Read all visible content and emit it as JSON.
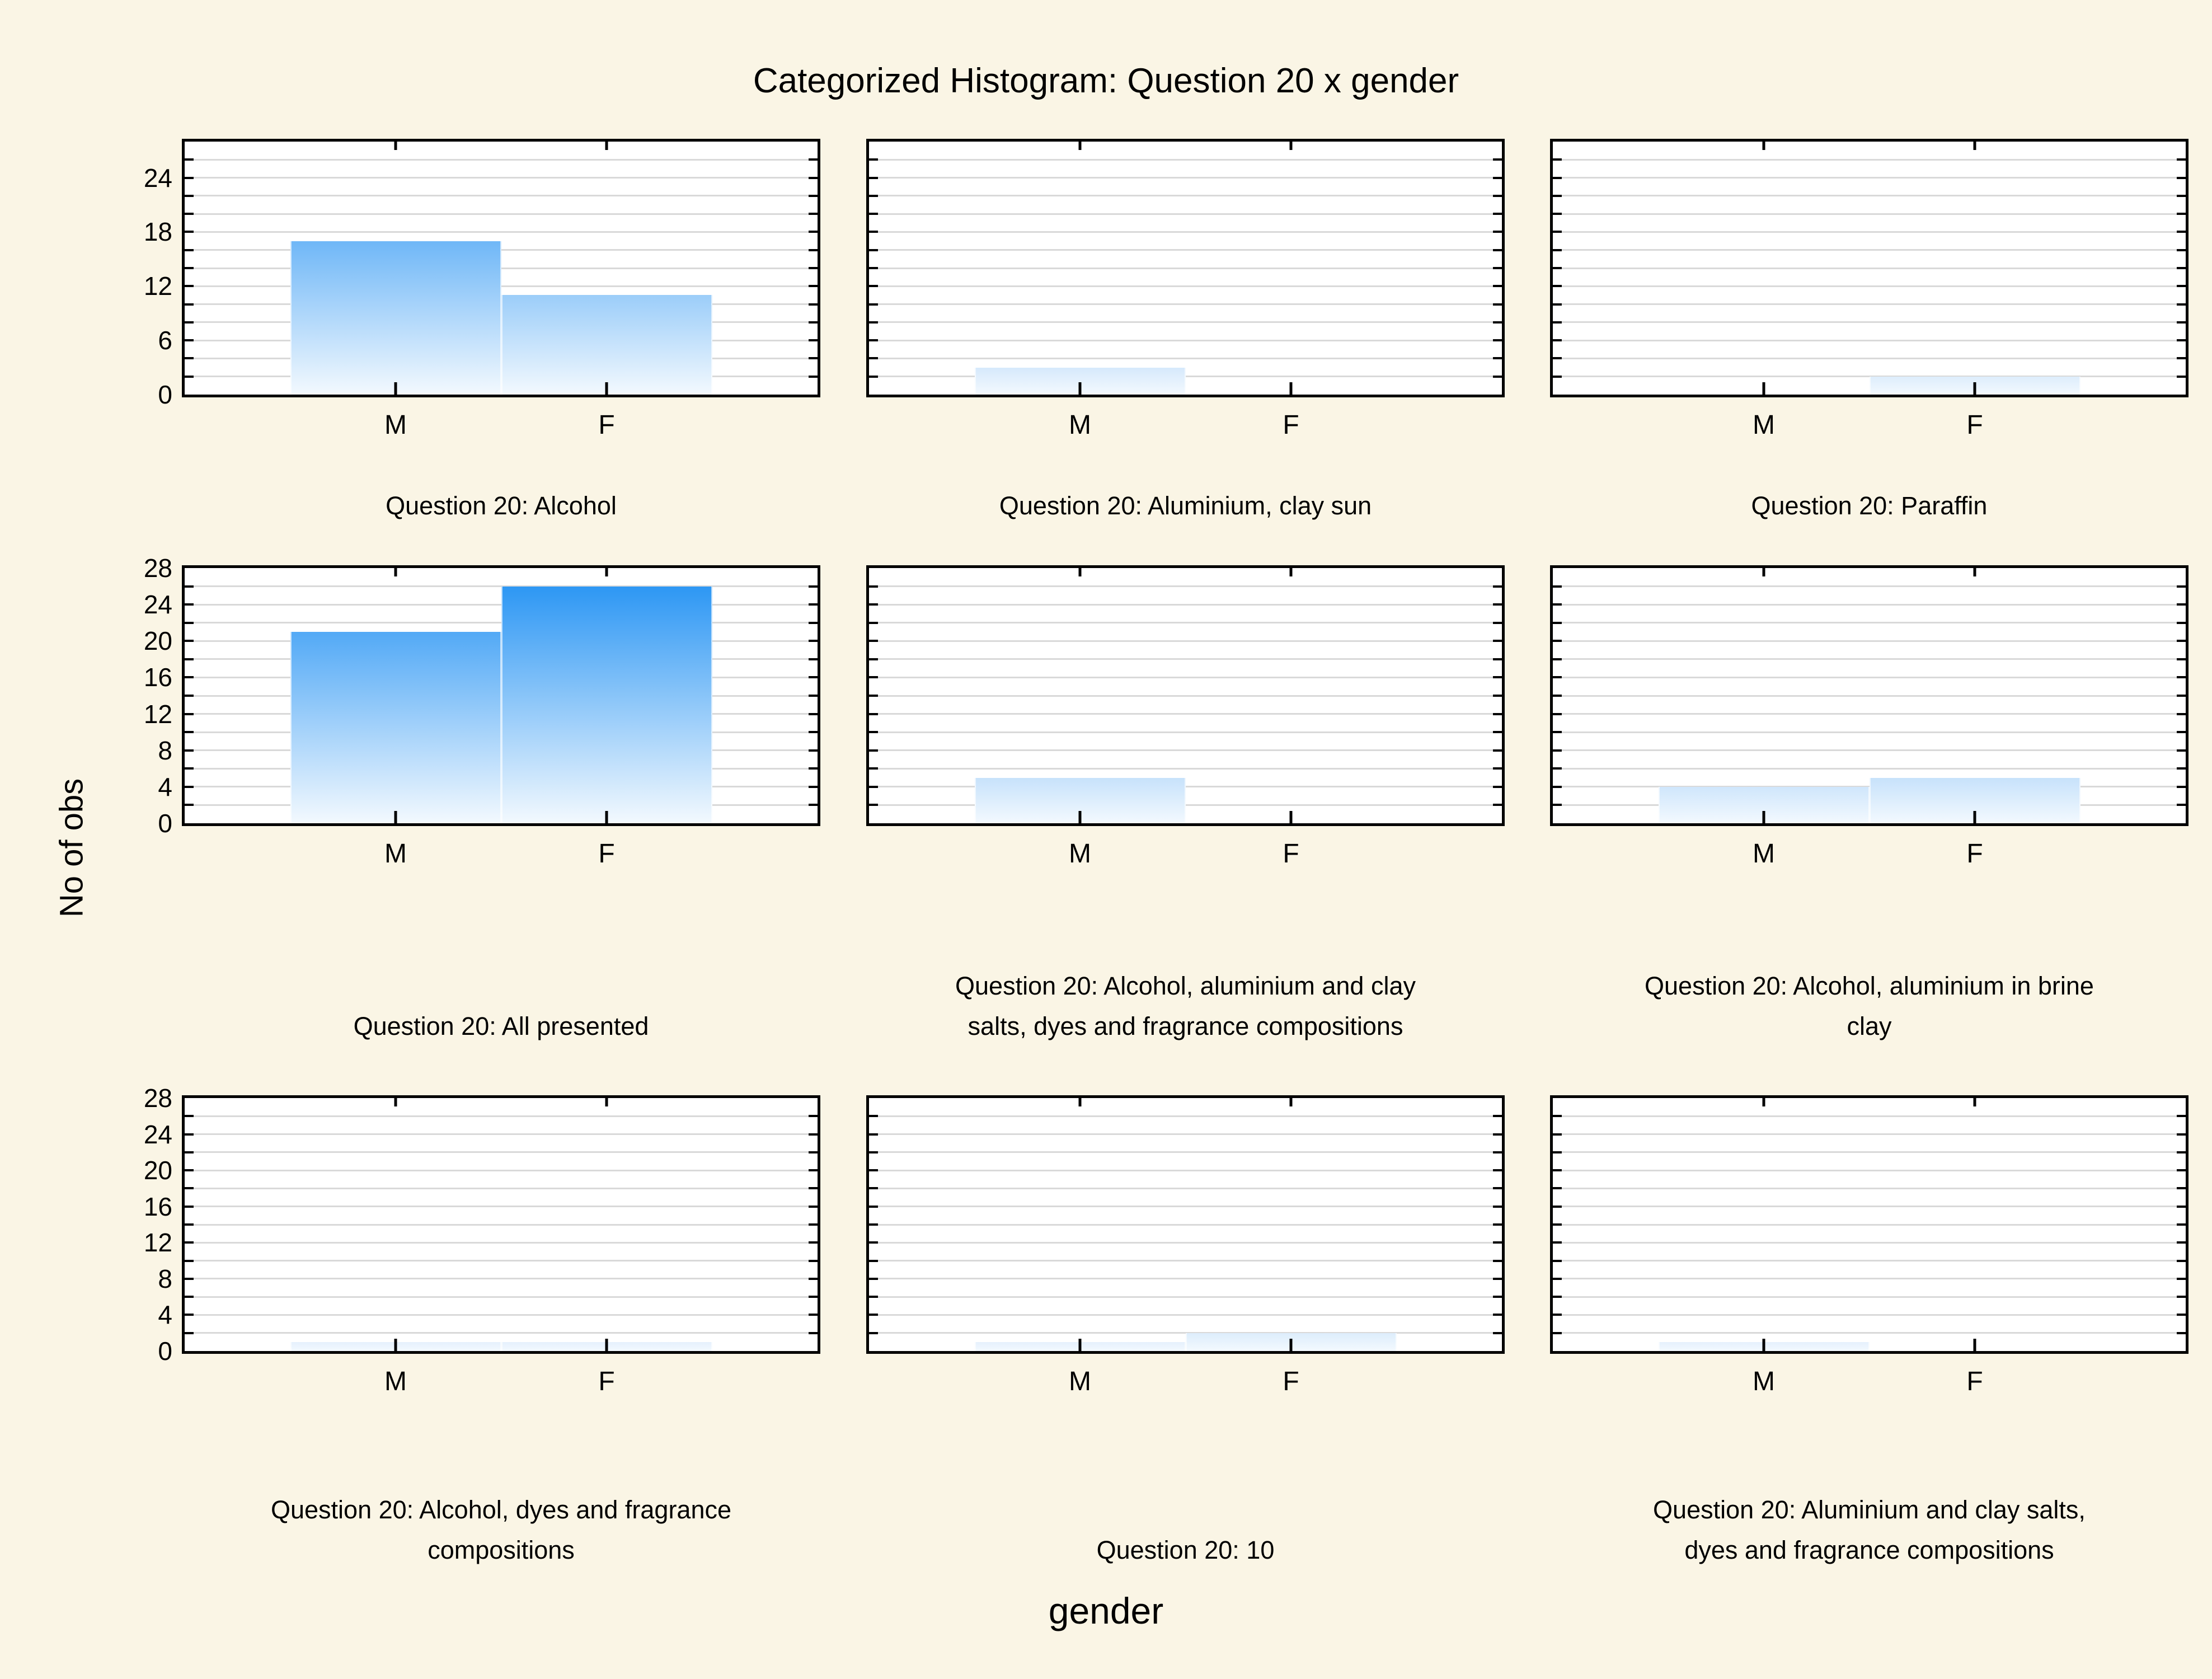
{
  "chart_data": {
    "type": "bar",
    "title": "Categorized Histogram: Question 20 x gender",
    "xlabel": "gender",
    "ylabel": "No of obs",
    "categories": [
      "M",
      "F"
    ],
    "ylim": [
      0,
      28
    ],
    "grid_step": 2,
    "grid": true,
    "legend": false,
    "panels": [
      {
        "subtitle": "Question 20: Alcohol",
        "subtitle_text": "Question 20: Alcohol",
        "values": [
          17,
          11
        ],
        "y_tick_labels": [
          0,
          6,
          12,
          18,
          24
        ]
      },
      {
        "subtitle": "Question 20: Aluminium, clay sun",
        "subtitle_text": "Question 20: Aluminium, clay sun",
        "values": [
          3,
          0
        ]
      },
      {
        "subtitle": "Question 20: Paraffin",
        "subtitle_text": "Question 20: Paraffin",
        "values": [
          0,
          2
        ]
      },
      {
        "subtitle": "Question 20: All presented",
        "subtitle_text": "Question 20: All presented",
        "values": [
          21,
          26
        ],
        "y_tick_labels": [
          0,
          4,
          8,
          12,
          16,
          20,
          24,
          28
        ]
      },
      {
        "subtitle": "Question 20: Alcohol, aluminium and clay salts, dyes and fragrance compositions",
        "subtitle_text": "Question 20: Alcohol, aluminium and clay\nsalts, dyes and fragrance compositions",
        "values": [
          5,
          0
        ]
      },
      {
        "subtitle": "Question 20: Alcohol, aluminium in brine clay",
        "subtitle_text": "Question 20: Alcohol, aluminium in brine\nclay",
        "values": [
          4,
          5
        ]
      },
      {
        "subtitle": "Question 20: Alcohol, dyes and fragrance compositions",
        "subtitle_text": "Question 20: Alcohol, dyes and fragrance\ncompositions",
        "values": [
          1,
          1
        ],
        "y_tick_labels": [
          0,
          4,
          8,
          12,
          16,
          20,
          24,
          28
        ]
      },
      {
        "subtitle": "Question 20: 10",
        "subtitle_text": "Question 20: 10",
        "values": [
          1,
          2
        ]
      },
      {
        "subtitle": "Question 20: Aluminium and clay salts, dyes and fragrance compositions",
        "subtitle_text": "Question 20: Aluminium and clay salts,\ndyes and fragrance compositions",
        "values": [
          1,
          0
        ]
      }
    ]
  },
  "colors": {
    "background": "#FAF5E5",
    "panel_background": "#FFFFFF",
    "gridline": "#D9D9D9",
    "frame": "#000000",
    "bar_top_max": "#1E90F3",
    "bar_top_min": "#ECF4FD",
    "bar_bottom": "#F3F9FE"
  }
}
